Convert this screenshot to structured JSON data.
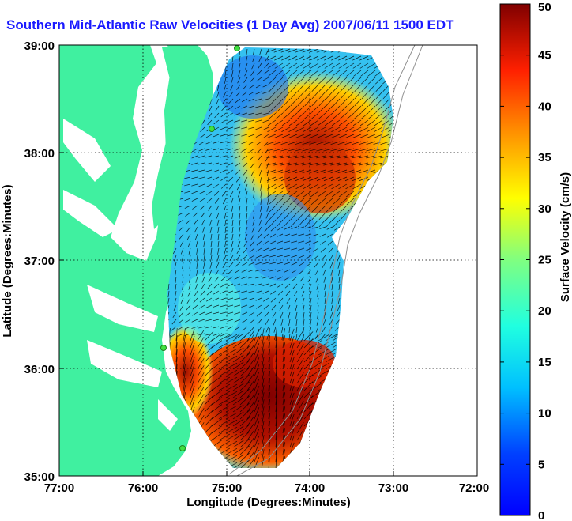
{
  "title": "Southern Mid-Atlantic Raw Velocities (1 Day Avg) 2007/06/11 1500 EDT",
  "chart_data": {
    "type": "heatmap",
    "xlabel": "Longitude (Degrees:Minutes)",
    "ylabel": "Latitude (Degrees:Minutes)",
    "x_ticks": [
      "77:00",
      "76:00",
      "75:00",
      "74:00",
      "73:00",
      "72:00"
    ],
    "y_ticks": [
      "39:00",
      "38:00",
      "37:00",
      "36:00",
      "35:00"
    ],
    "xlim": [
      -77,
      -72
    ],
    "ylim": [
      35,
      39
    ],
    "grid": "dotted",
    "colorbar": {
      "label": "Surface Velocity (cm/s)",
      "min": 0,
      "max": 50,
      "ticks": [
        "0",
        "5",
        "10",
        "15",
        "20",
        "25",
        "30",
        "35",
        "40",
        "45",
        "50"
      ],
      "colormap": "jet"
    },
    "colors": {
      "land": "#40f0a0",
      "water": "#ffffff",
      "title": "#1a1aff"
    }
  }
}
